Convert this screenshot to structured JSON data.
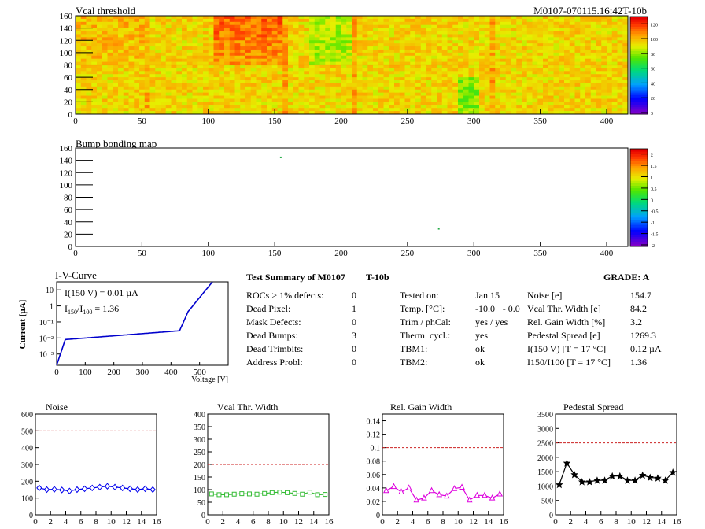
{
  "header": {
    "title": "Vcal threshold",
    "module_id": "M0107-070115.16:42T-10b"
  },
  "vcal_map": {
    "title": "Vcal threshold",
    "xticks": [
      "0",
      "50",
      "100",
      "150",
      "200",
      "250",
      "300",
      "350",
      "400"
    ],
    "yticks": [
      "0",
      "20",
      "40",
      "60",
      "80",
      "100",
      "120",
      "140",
      "160"
    ],
    "palette_ticks": [
      "0",
      "20",
      "40",
      "60",
      "80",
      "100",
      "120"
    ]
  },
  "bump_map": {
    "title": "Bump bonding map",
    "xticks": [
      "0",
      "50",
      "100",
      "150",
      "200",
      "250",
      "300",
      "350",
      "400"
    ],
    "yticks": [
      "0",
      "20",
      "40",
      "60",
      "80",
      "100",
      "120",
      "140",
      "160"
    ],
    "palette_ticks": [
      "-2",
      "-1.5",
      "-1",
      "-0.5",
      "0",
      "0.5",
      "1",
      "1.5",
      "2"
    ],
    "hits": [
      {
        "x": 154,
        "y": 146
      },
      {
        "x": 273,
        "y": 30
      }
    ]
  },
  "iv_curve": {
    "title": "I-V-Curve",
    "ylabel": "Current [µA]",
    "xlabel": "Voltage [V]",
    "annotation1": "I(150 V) = 0.01 µA",
    "annotation2": "I150/I100 =  1.36",
    "xticks": [
      "0",
      "100",
      "200",
      "300",
      "400",
      "500"
    ],
    "yticks": [
      "10",
      "1",
      "10⁻¹",
      "10⁻²",
      "10⁻³"
    ]
  },
  "summary": {
    "title": "Test Summary of M0107",
    "temp_tag": "T-10b",
    "grade": "GRADE:  A",
    "left": [
      {
        "label": "ROCs > 1% defects:",
        "value": "0"
      },
      {
        "label": "Dead Pixel:",
        "value": "1"
      },
      {
        "label": "Mask Defects:",
        "value": "0"
      },
      {
        "label": "Dead Bumps:",
        "value": "3"
      },
      {
        "label": "Dead Trimbits:",
        "value": "0"
      },
      {
        "label": "Address Probl:",
        "value": "0"
      }
    ],
    "middle": [
      {
        "label": "Tested on:",
        "value": "Jan 15"
      },
      {
        "label": "Temp. [°C]:",
        "value": "-10.0 +- 0.0"
      },
      {
        "label": "Trim / phCal:",
        "value": "yes / yes"
      },
      {
        "label": "Therm. cycl.:",
        "value": "yes"
      },
      {
        "label": "TBM1:",
        "value": "ok"
      },
      {
        "label": "TBM2:",
        "value": "ok"
      }
    ],
    "right": [
      {
        "label": "Noise [e]",
        "value": "154.7"
      },
      {
        "label": "Vcal Thr. Width [e]",
        "value": "84.2"
      },
      {
        "label": "Rel. Gain Width [%]",
        "value": "3.2"
      },
      {
        "label": "Pedestal Spread [e]",
        "value": "1269.3"
      },
      {
        "label": "I(150 V) [T = 17 °C]",
        "value": "0.12 µA"
      },
      {
        "label": "I150/I100  [T = 17 °C]",
        "value": "1.36"
      }
    ]
  },
  "chart_data": [
    {
      "type": "line",
      "title": "Noise",
      "color": "#0000ee",
      "marker": "diamond",
      "x": [
        0,
        1,
        2,
        3,
        4,
        5,
        6,
        7,
        8,
        9,
        10,
        11,
        12,
        13,
        14,
        15
      ],
      "values": [
        160,
        150,
        152,
        148,
        142,
        150,
        155,
        160,
        165,
        170,
        165,
        160,
        155,
        150,
        155,
        150
      ],
      "threshold": 500,
      "ylim": [
        0,
        600
      ],
      "yticks": [
        "0",
        "100",
        "200",
        "300",
        "400",
        "500",
        "600"
      ],
      "xticks": [
        "0",
        "2",
        "4",
        "6",
        "8",
        "10",
        "12",
        "14",
        "16"
      ]
    },
    {
      "type": "line",
      "title": "Vcal Thr. Width",
      "color": "#33bb33",
      "marker": "square",
      "x": [
        0,
        1,
        2,
        3,
        4,
        5,
        6,
        7,
        8,
        9,
        10,
        11,
        12,
        13,
        14,
        15
      ],
      "values": [
        83,
        80,
        80,
        82,
        84,
        83,
        82,
        85,
        88,
        90,
        88,
        85,
        82,
        90,
        80,
        81
      ],
      "threshold": 200,
      "ylim": [
        0,
        400
      ],
      "yticks": [
        "0",
        "50",
        "100",
        "150",
        "200",
        "250",
        "300",
        "350",
        "400"
      ],
      "xticks": [
        "0",
        "2",
        "4",
        "6",
        "8",
        "10",
        "12",
        "14",
        "16"
      ]
    },
    {
      "type": "line",
      "title": "Rel. Gain Width",
      "color": "#dd00dd",
      "marker": "triangle",
      "x": [
        0,
        1,
        2,
        3,
        4,
        5,
        6,
        7,
        8,
        9,
        10,
        11,
        12,
        13,
        14,
        15
      ],
      "values": [
        0.036,
        0.042,
        0.034,
        0.04,
        0.022,
        0.025,
        0.036,
        0.03,
        0.028,
        0.039,
        0.041,
        0.022,
        0.029,
        0.029,
        0.025,
        0.031
      ],
      "threshold": 0.1,
      "ylim": [
        0,
        0.15
      ],
      "yticks": [
        "0",
        "0.02",
        "0.04",
        "0.06",
        "0.08",
        "0.1",
        "0.12",
        "0.14"
      ],
      "xticks": [
        "0",
        "2",
        "4",
        "6",
        "8",
        "10",
        "12",
        "14",
        "16"
      ]
    },
    {
      "type": "line",
      "title": "Pedestal Spread",
      "color": "#000000",
      "marker": "star",
      "x": [
        0,
        1,
        2,
        3,
        4,
        5,
        6,
        7,
        8,
        9,
        10,
        11,
        12,
        13,
        14,
        15
      ],
      "values": [
        1050,
        1800,
        1400,
        1150,
        1150,
        1200,
        1200,
        1350,
        1350,
        1200,
        1200,
        1380,
        1300,
        1280,
        1200,
        1480
      ],
      "threshold": 2500,
      "ylim": [
        0,
        3500
      ],
      "yticks": [
        "0",
        "500",
        "1000",
        "1500",
        "2000",
        "2500",
        "3000",
        "3500"
      ],
      "xticks": [
        "0",
        "2",
        "4",
        "6",
        "8",
        "10",
        "12",
        "14",
        "16"
      ]
    }
  ]
}
